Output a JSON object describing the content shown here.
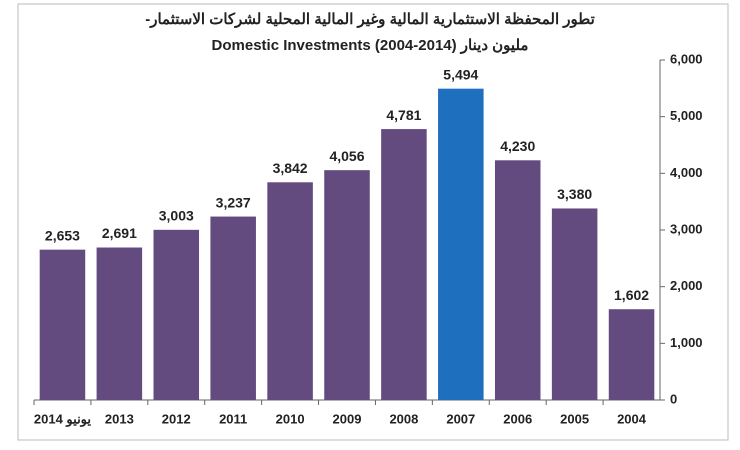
{
  "chart_data": {
    "type": "bar",
    "title": "تطور المحفظة الاستثمارية المالية وغير المالية المحلية لشركات الاستثمار-",
    "subtitle": "مليون دينار Domestic Investments  (2004-2014)",
    "categories": [
      "يونيو 2014",
      "2013",
      "2012",
      "2011",
      "2010",
      "2009",
      "2008",
      "2007",
      "2006",
      "2005",
      "2004"
    ],
    "values": [
      2653,
      2691,
      3003,
      3237,
      3842,
      4056,
      4781,
      5494,
      4230,
      3380,
      1602
    ],
    "value_labels": [
      "2,653",
      "2,691",
      "3,003",
      "3,237",
      "3,842",
      "4,056",
      "4,781",
      "5,494",
      "4,230",
      "3,380",
      "1,602"
    ],
    "colors": [
      "#634a7f",
      "#634a7f",
      "#634a7f",
      "#634a7f",
      "#634a7f",
      "#634a7f",
      "#634a7f",
      "#1f6fbf",
      "#634a7f",
      "#634a7f",
      "#634a7f"
    ],
    "ylim": [
      0,
      6000
    ],
    "yticks": [
      0,
      {
        "value": 1000,
        "label": "1,000"
      },
      {
        "value": 2000,
        "label": "2,000"
      },
      {
        "value": 3000,
        "label": "3,000"
      },
      {
        "value": 4000,
        "label": "4,000"
      },
      {
        "value": 5000,
        "label": "5,000"
      },
      {
        "value": 6000,
        "label": "6,000"
      }
    ],
    "y_axis_side": "right",
    "grid": false
  }
}
